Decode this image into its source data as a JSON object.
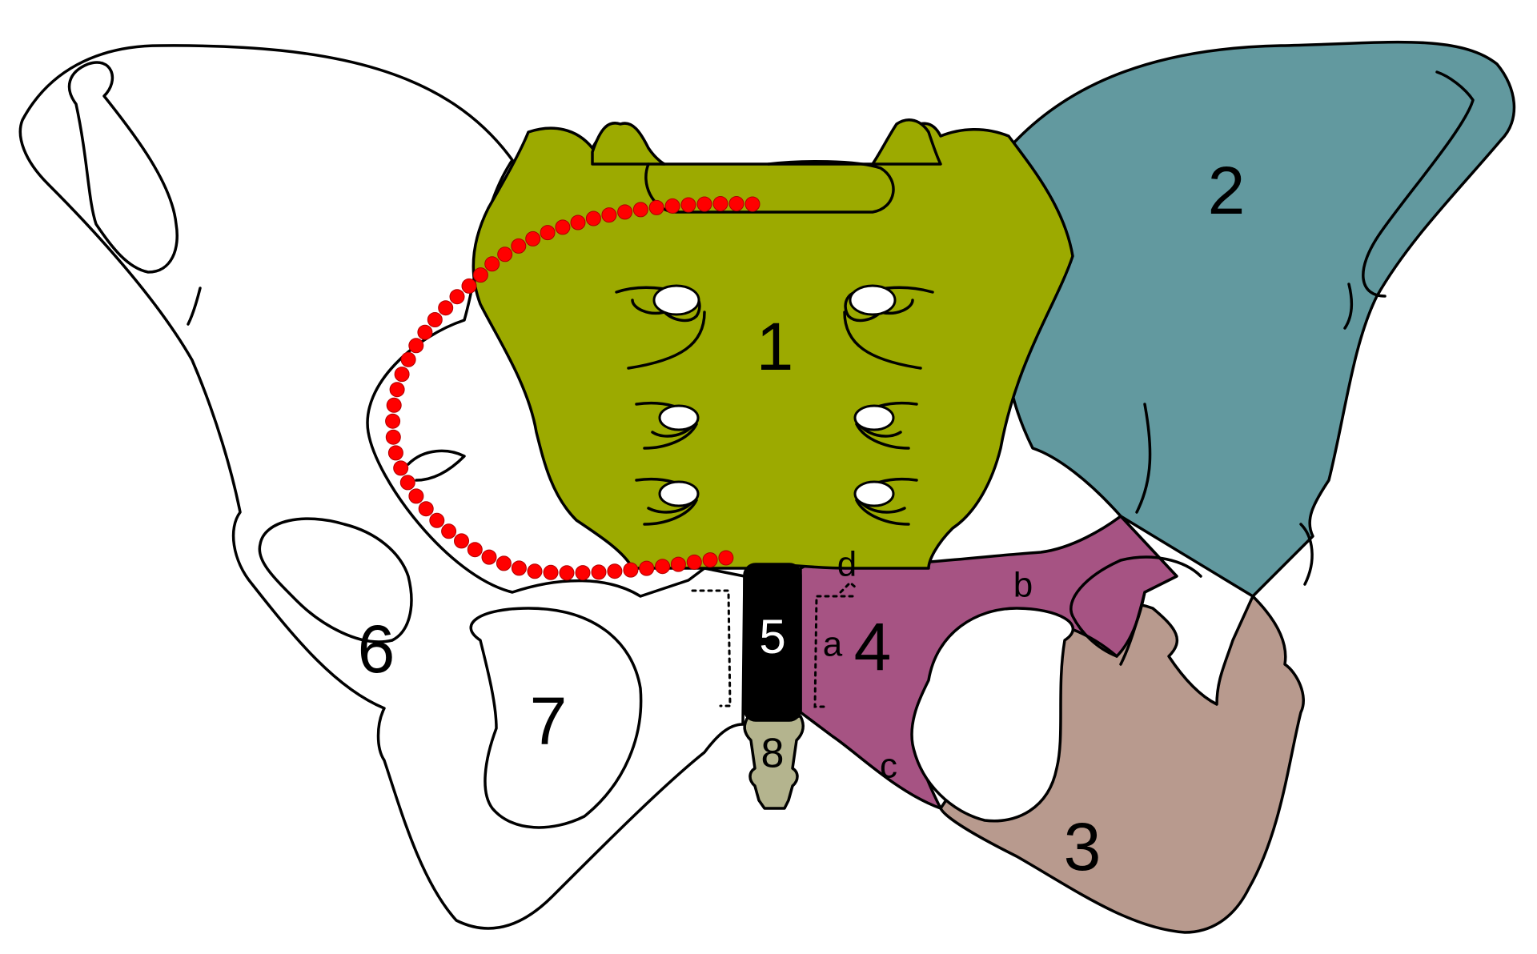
{
  "colors": {
    "sacrum": "#9caa00",
    "ilium": "#62999f",
    "ischium": "#b89a8e",
    "pubis": "#a65383",
    "symphysis": "#000000",
    "coccyx": "#b4b48e",
    "outline": "#000000",
    "unshaded_bone": "#ffffff",
    "pelvic_brim_dots": "#ff0000"
  },
  "labels": {
    "sacrum": "1",
    "ilium": "2",
    "ischium": "3",
    "pubis": "4",
    "symphysis": "5",
    "acetabulum": "6",
    "obturator_foramen": "7",
    "coccyx": "8",
    "pubis_part_a": "a",
    "pubis_part_b": "b",
    "pubis_part_c": "c",
    "pubis_part_d": "d"
  }
}
